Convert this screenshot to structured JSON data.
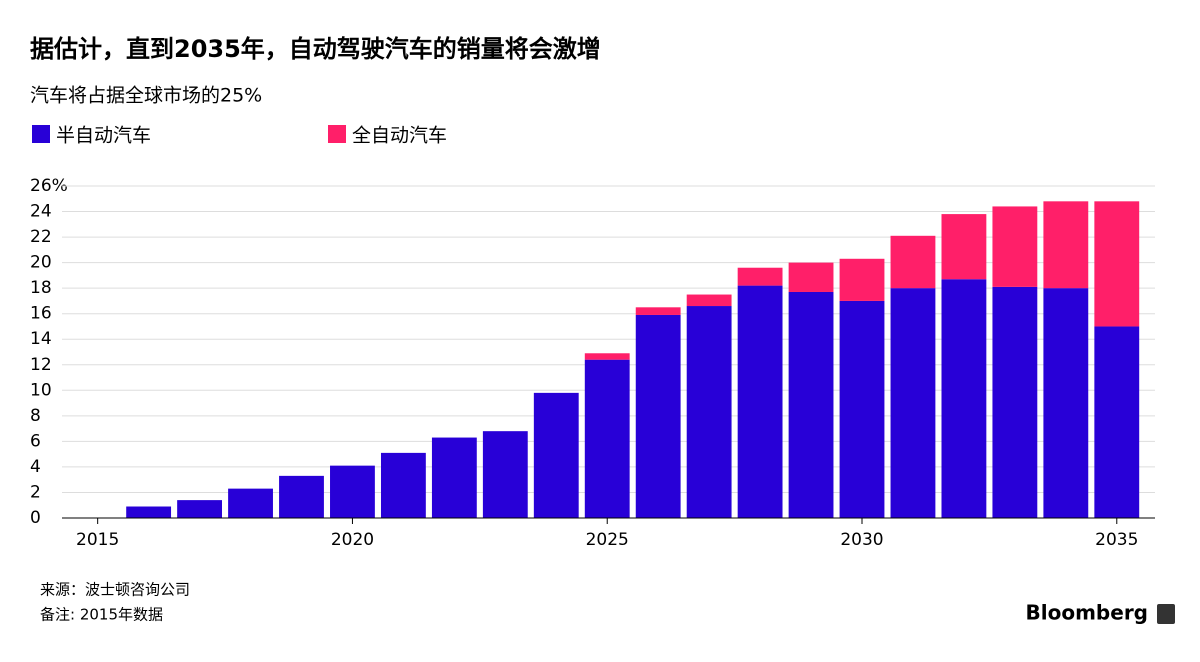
{
  "chart_data": {
    "type": "stacked-bar",
    "title": "据估计，直到2035年，自动驾驶汽车的销量将会激增",
    "subtitle": "汽车将占据全球市场的25%",
    "x": [
      2015,
      2016,
      2017,
      2018,
      2019,
      2020,
      2021,
      2022,
      2023,
      2024,
      2025,
      2026,
      2027,
      2028,
      2029,
      2030,
      2031,
      2032,
      2033,
      2034,
      2035
    ],
    "xlim": [
      2014.3,
      2035.75
    ],
    "xticks": [
      2015,
      2020,
      2025,
      2030,
      2035
    ],
    "ylim": [
      0,
      26
    ],
    "yticks": [
      0,
      2,
      4,
      6,
      8,
      10,
      12,
      14,
      16,
      18,
      20,
      22,
      24,
      {
        "value": 26,
        "label": "26%"
      }
    ],
    "grid": true,
    "series": [
      {
        "name": "半自动汽车",
        "color": "#2800d7",
        "values": [
          0,
          0.9,
          1.4,
          2.3,
          3.3,
          4.1,
          5.1,
          6.3,
          6.8,
          9.8,
          12.4,
          15.9,
          16.6,
          18.2,
          17.7,
          17.0,
          18.0,
          18.7,
          18.1,
          18.0,
          15.0
        ]
      },
      {
        "name": "全自动汽车",
        "color": "#ff1f69",
        "values": [
          0,
          0,
          0,
          0,
          0,
          0,
          0,
          0,
          0,
          0,
          0.5,
          0.6,
          0.9,
          1.4,
          2.3,
          3.3,
          4.1,
          5.1,
          6.3,
          6.8,
          9.8
        ]
      }
    ],
    "source": "来源：波士顿咨询公司",
    "note": "备注: 2015年数据",
    "brand": "Bloomberg"
  }
}
